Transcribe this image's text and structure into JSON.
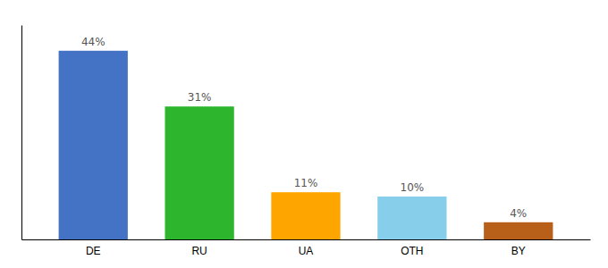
{
  "chart_data": {
    "type": "bar",
    "categories": [
      "DE",
      "RU",
      "UA",
      "OTH",
      "BY"
    ],
    "values": [
      44,
      31,
      11,
      10,
      4
    ],
    "value_labels": [
      "44%",
      "31%",
      "11%",
      "10%",
      "4%"
    ],
    "colors": [
      "#4472c4",
      "#2db52d",
      "#ffa500",
      "#87ceeb",
      "#b8601a"
    ],
    "ylim": [
      0,
      50
    ],
    "data_labels": true,
    "tick_labels": "x",
    "grid": false
  }
}
